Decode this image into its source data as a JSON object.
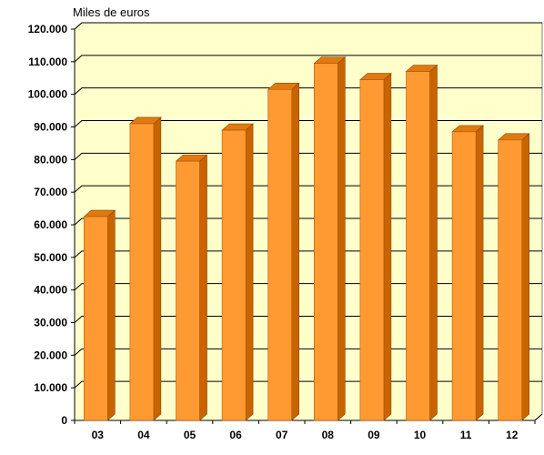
{
  "chart_data": {
    "type": "bar",
    "ylabel": "Miles de euros",
    "xlabel": "",
    "title": "",
    "categories": [
      "03",
      "04",
      "05",
      "06",
      "07",
      "08",
      "09",
      "10",
      "11",
      "12"
    ],
    "values": [
      62500,
      91000,
      79500,
      89000,
      101500,
      109500,
      104500,
      107000,
      88500,
      86000
    ],
    "ylim": [
      0,
      120000
    ],
    "yticks": [
      0,
      10000,
      20000,
      30000,
      40000,
      50000,
      60000,
      70000,
      80000,
      90000,
      100000,
      110000,
      120000
    ],
    "ytick_labels": [
      "0",
      "10.000",
      "20.000",
      "30.000",
      "40.000",
      "50.000",
      "60.000",
      "70.000",
      "80.000",
      "90.000",
      "100.000",
      "110.000",
      "120.000"
    ],
    "grid": true,
    "style": "3d",
    "colors": {
      "bar_front": "#FF9A33",
      "bar_side": "#C86400",
      "bar_top": "#E07A10",
      "plot_background": "#FFFFCC",
      "gridline": "#000000"
    }
  }
}
